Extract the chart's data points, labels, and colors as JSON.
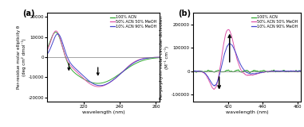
{
  "panel_a": {
    "title": "(a)",
    "xlabel": "wavelength (nm)",
    "ylabel": "Per-residue molar ellipticity θ\n(deg cm² dmol⁻¹)",
    "xlim": [
      200,
      262
    ],
    "ylim": [
      -22000,
      22000
    ],
    "yticks": [
      -20000,
      -10000,
      0,
      10000,
      20000
    ],
    "xticks": [
      220,
      240,
      260
    ],
    "colors": {
      "green": "#33aa33",
      "pink": "#dd55aa",
      "blue": "#4444cc"
    },
    "legend": [
      "100% ACN",
      "50% ACN 50% MeOH",
      "10% ACN 90% MeOH"
    ]
  },
  "panel_b": {
    "title": "(b)",
    "xlabel": "wavelength (nm)",
    "ylabel": "Per-porphyrin molar circular dichroism\n(M⁻¹ cm⁻¹)",
    "xlim": [
      400,
      462
    ],
    "ylim": [
      -130000,
      250000
    ],
    "yticks": [
      -100000,
      0,
      100000,
      200000
    ],
    "xticks": [
      420,
      440,
      460
    ],
    "colors": {
      "green": "#33aa33",
      "pink": "#dd55aa",
      "blue": "#4444cc"
    },
    "legend": [
      "100% ACN",
      "50% ACN 50% MeOH",
      "10% ACN 90% MeOH"
    ]
  },
  "figure": {
    "bg_color": "#ffffff",
    "figsize": [
      3.81,
      1.6
    ],
    "dpi": 100
  }
}
